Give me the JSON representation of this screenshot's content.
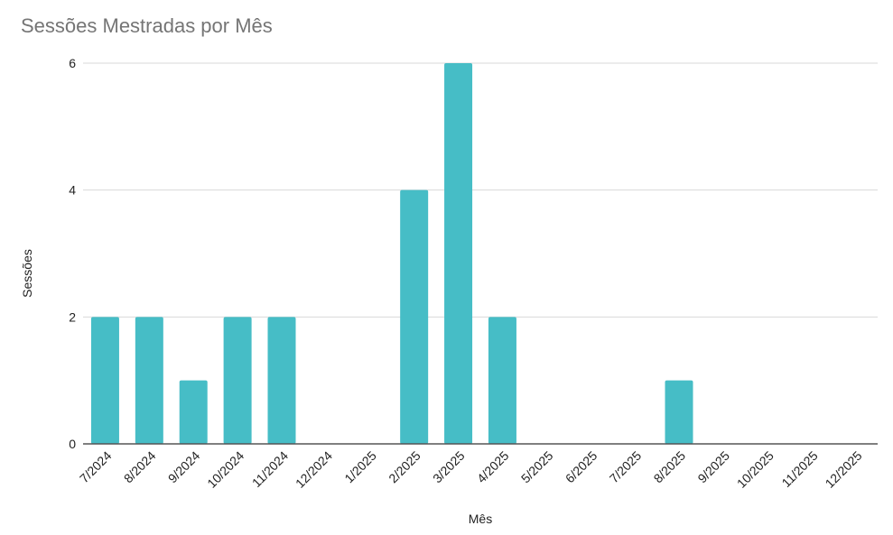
{
  "chart_data": {
    "type": "bar",
    "title": "Sessões Mestradas por Mês",
    "xlabel": "Mês",
    "ylabel": "Sessões",
    "categories": [
      "7/2024",
      "8/2024",
      "9/2024",
      "10/2024",
      "11/2024",
      "12/2024",
      "1/2025",
      "2/2025",
      "3/2025",
      "4/2025",
      "5/2025",
      "6/2025",
      "7/2025",
      "8/2025",
      "9/2025",
      "10/2025",
      "11/2025",
      "12/2025"
    ],
    "values": [
      2,
      2,
      1,
      2,
      2,
      0,
      0,
      4,
      6,
      2,
      0,
      0,
      0,
      1,
      0,
      0,
      0,
      0
    ],
    "ylim": [
      0,
      6
    ],
    "yticks": [
      0,
      2,
      4,
      6
    ],
    "grid": true,
    "bar_color": "#46bdc6"
  }
}
